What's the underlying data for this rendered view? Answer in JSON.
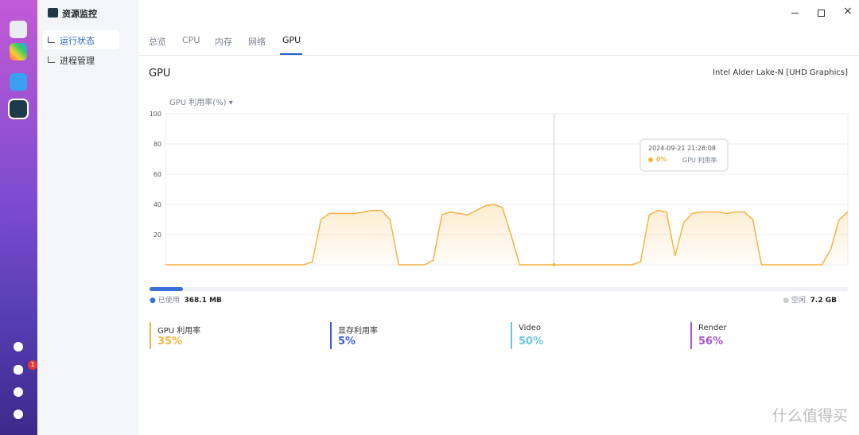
{
  "window": {
    "title": "资源监控"
  },
  "sidebar": {
    "items": [
      "运行状态",
      "进程管理"
    ],
    "active": 0
  },
  "dock": {
    "badge": "1"
  },
  "tabs": {
    "items": [
      "总览",
      "CPU",
      "内存",
      "网络",
      "GPU"
    ],
    "active": 4
  },
  "panel": {
    "title": "GPU",
    "device": "Intel Alder Lake-N [UHD Graphics]"
  },
  "chart_data": {
    "type": "area",
    "metric": "GPU 利用率(%)",
    "color": "#f5b342",
    "ylim": [
      0,
      100
    ],
    "yticks": [
      20,
      40,
      60,
      80,
      100
    ],
    "grid": true,
    "series": [
      {
        "name": "GPU 利用率",
        "color": "#f5b342",
        "values": [
          0,
          0,
          0,
          0,
          0,
          0,
          0,
          0,
          0,
          0,
          0,
          0,
          0,
          0,
          0,
          0,
          0,
          2,
          30,
          34,
          34,
          34,
          34,
          35,
          36,
          36,
          30,
          0,
          0,
          0,
          0,
          3,
          33,
          35,
          34,
          33,
          36,
          39,
          40,
          38,
          20,
          0,
          0,
          0,
          0,
          0,
          0,
          0,
          0,
          0,
          0,
          0,
          0,
          0,
          0,
          2,
          33,
          36,
          35,
          6,
          28,
          34,
          35,
          35,
          35,
          34,
          35,
          35,
          30,
          0,
          0,
          0,
          0,
          0,
          0,
          0,
          0,
          10,
          30,
          35
        ]
      }
    ],
    "tooltip": {
      "index": 45,
      "time": "2024-09-21 21:28:08",
      "value": 0,
      "value_label": "0%"
    }
  },
  "memory": {
    "used_label": "已使用",
    "used": {
      "value": 368.1,
      "label": "368.1 MB"
    },
    "free_label": "空闲",
    "free": {
      "value": 7.2,
      "label": "7.2 GB"
    }
  },
  "stats": [
    {
      "name": "GPU 利用率",
      "value": 35,
      "value_label": "35%",
      "color": "#f5b342"
    },
    {
      "name": "显存利用率",
      "value": 5,
      "value_label": "5%",
      "color": "#3f5bd8"
    },
    {
      "name": "Video",
      "value": 50,
      "value_label": "50%",
      "color": "#6cc6e0"
    },
    {
      "name": "Render",
      "value": 56,
      "value_label": "56%",
      "color": "#a855d9"
    }
  ],
  "watermark": {
    "text": "什么值得买"
  }
}
